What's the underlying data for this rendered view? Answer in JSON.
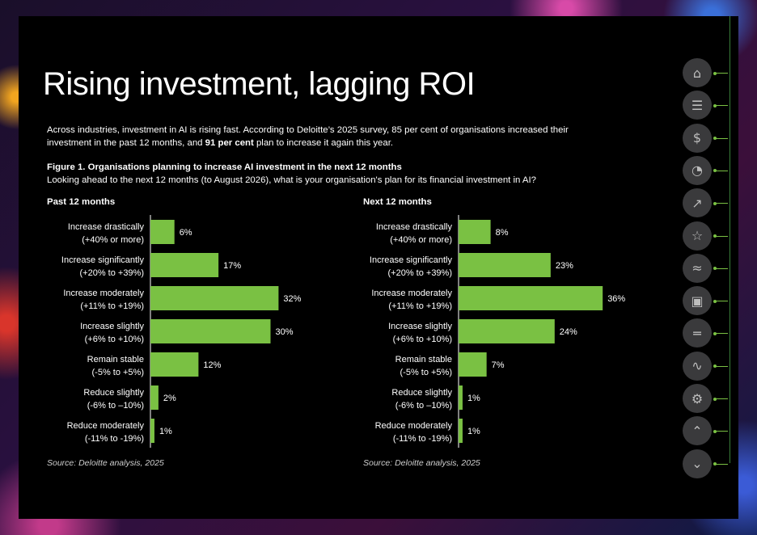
{
  "page": {
    "title": "Rising investment, lagging ROI",
    "intro_part1": "Across industries, investment in AI is rising fast. According to Deloitte’s 2025 survey, 85 per cent of organisations increased their investment in the past 12 months, and ",
    "intro_bold": "91 per cent",
    "intro_part2": " plan to increase it again this year.",
    "figure_title": "Figure 1. Organisations planning to increase AI investment in the next 12 months",
    "figure_question": "Looking ahead to the next 12 months (to August 2026), what is your organisation's plan for its financial investment in AI?"
  },
  "nav": {
    "icons": [
      "home-icon",
      "list-icon",
      "money-bag-icon",
      "pie-chart-icon",
      "growth-chart-icon",
      "trophy-icon",
      "handshake-icon",
      "robot-icon",
      "ruler-icon",
      "network-icon",
      "gear-icon",
      "arrow-up-icon",
      "arrow-down-icon"
    ],
    "accent": "#7ac143"
  },
  "chart_data": [
    {
      "type": "bar",
      "orientation": "horizontal",
      "title": "Past 12 months",
      "categories": [
        [
          "Increase drastically",
          "(+40% or more)"
        ],
        [
          "Increase significantly",
          "(+20% to +39%)"
        ],
        [
          "Increase moderately",
          "(+11% to +19%)"
        ],
        [
          "Increase slightly",
          "(+6% to +10%)"
        ],
        [
          "Remain stable",
          "(-5% to +5%)"
        ],
        [
          "Reduce slightly",
          "(-6% to –10%)"
        ],
        [
          "Reduce moderately",
          "(-11% to -19%)"
        ]
      ],
      "values": [
        6,
        17,
        32,
        30,
        12,
        2,
        1
      ],
      "value_labels": [
        "6%",
        "17%",
        "32%",
        "30%",
        "12%",
        "2%",
        "1%"
      ],
      "unit": "%",
      "source": "Source: Deloitte analysis, 2025",
      "bar_color": "#7ac143"
    },
    {
      "type": "bar",
      "orientation": "horizontal",
      "title": "Next 12 months",
      "categories": [
        [
          "Increase drastically",
          "(+40% or more)"
        ],
        [
          "Increase significantly",
          "(+20% to +39%)"
        ],
        [
          "Increase moderately",
          "(+11% to +19%)"
        ],
        [
          "Increase slightly",
          "(+6% to +10%)"
        ],
        [
          "Remain stable",
          "(-5% to +5%)"
        ],
        [
          "Reduce slightly",
          "(-6% to –10%)"
        ],
        [
          "Reduce moderately",
          "(-11% to -19%)"
        ]
      ],
      "values": [
        8,
        23,
        36,
        24,
        7,
        1,
        1
      ],
      "value_labels": [
        "8%",
        "23%",
        "36%",
        "24%",
        "7%",
        "1%",
        "1%"
      ],
      "unit": "%",
      "source": "Source: Deloitte analysis, 2025",
      "bar_color": "#7ac143"
    }
  ]
}
